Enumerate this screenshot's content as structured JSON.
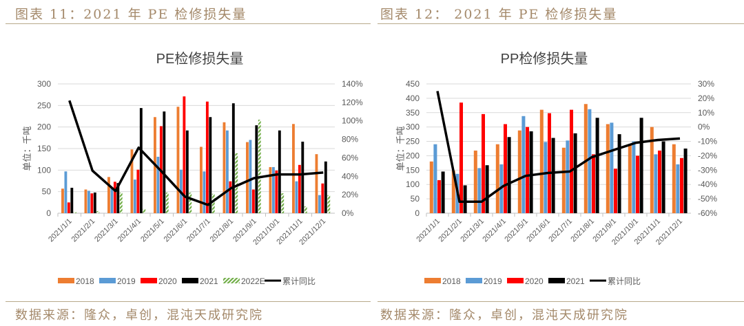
{
  "left_panel": {
    "header": "图表 11：2021 年 PE 检修损失量",
    "source": "数据来源：隆众，卓创，混沌天成研究院"
  },
  "right_panel": {
    "header": "图表 12： 2021 年 PE 检修损失量",
    "source": "数据来源：隆众，卓创，混沌天成研究院"
  },
  "colors": {
    "2018": "#ED7D31",
    "2019": "#5B9BD5",
    "2020": "#FF0000",
    "2021": "#000000",
    "2022E": "#70AD47",
    "line": "#000000"
  },
  "chart_data": [
    {
      "type": "bar+line",
      "title": "PE检修损失量",
      "ylabel": "单位：千吨",
      "ylim": [
        0,
        300
      ],
      "yticks": [
        0,
        50,
        100,
        150,
        200,
        250,
        300
      ],
      "y2lim": [
        0,
        140
      ],
      "y2ticks": [
        "0%",
        "20%",
        "40%",
        "60%",
        "80%",
        "100%",
        "120%",
        "140%"
      ],
      "grid": true,
      "legend": "bottom",
      "categories": [
        "2021/1/1",
        "2021/2/1",
        "2021/3/1",
        "2021/4/1",
        "2021/5/1",
        "2021/6/1",
        "2021/7/1",
        "2021/8/1",
        "2021/9/1",
        "2021/10/1",
        "2021/11/1",
        "2021/12/1"
      ],
      "series": [
        {
          "name": "2018",
          "values": [
            57,
            55,
            84,
            148,
            223,
            247,
            154,
            211,
            165,
            107,
            207,
            137
          ]
        },
        {
          "name": "2019",
          "values": [
            97,
            52,
            60,
            78,
            131,
            101,
            97,
            192,
            170,
            107,
            74,
            42
          ]
        },
        {
          "name": "2020",
          "values": [
            25,
            46,
            73,
            101,
            202,
            271,
            259,
            74,
            55,
            99,
            112,
            69
          ]
        },
        {
          "name": "2021",
          "values": [
            59,
            48,
            70,
            244,
            236,
            192,
            223,
            255,
            204,
            192,
            166,
            120
          ]
        },
        {
          "name": "2022E",
          "values": [
            3,
            5,
            48,
            10,
            48,
            48,
            45,
            139,
            217,
            46,
            16,
            42
          ],
          "pattern": "hatched"
        }
      ],
      "line": {
        "name": "累计同比",
        "axis": "right",
        "values": [
          122,
          46,
          24,
          71,
          45,
          18,
          9,
          27,
          38,
          42,
          42,
          44
        ]
      }
    },
    {
      "type": "bar+line",
      "title": "PP检修损失量",
      "ylabel": "单位：千吨",
      "ylim": [
        0,
        450
      ],
      "yticks": [
        0,
        50,
        100,
        150,
        200,
        250,
        300,
        350,
        400,
        450
      ],
      "y2lim": [
        -60,
        30
      ],
      "y2ticks": [
        "-60%",
        "-50%",
        "-40%",
        "-30%",
        "-20%",
        "-10%",
        "0%",
        "10%",
        "20%",
        "30%"
      ],
      "grid": true,
      "legend": "bottom",
      "categories": [
        "2021/1/1",
        "2021/2/1",
        "2021/3/1",
        "2021/4/1",
        "2021/5/1",
        "2021/6/1",
        "2021/7/1",
        "2021/8/1",
        "2021/9/1",
        "2021/10/1",
        "2021/11/1",
        "2021/12/1"
      ],
      "series": [
        {
          "name": "2018",
          "values": [
            180,
            148,
            218,
            240,
            288,
            360,
            228,
            380,
            310,
            240,
            300,
            240
          ]
        },
        {
          "name": "2019",
          "values": [
            240,
            137,
            157,
            170,
            338,
            248,
            253,
            362,
            315,
            250,
            205,
            170
          ]
        },
        {
          "name": "2020",
          "values": [
            115,
            385,
            345,
            310,
            300,
            348,
            360,
            205,
            155,
            200,
            218,
            192
          ]
        },
        {
          "name": "2021",
          "values": [
            145,
            97,
            167,
            265,
            285,
            262,
            278,
            332,
            275,
            332,
            250,
            225
          ]
        }
      ],
      "line": {
        "name": "累计同比",
        "axis": "right",
        "values": [
          25,
          -52,
          -52,
          -41,
          -34,
          -32,
          -31,
          -21,
          -16,
          -11,
          -9,
          -8
        ]
      }
    }
  ]
}
